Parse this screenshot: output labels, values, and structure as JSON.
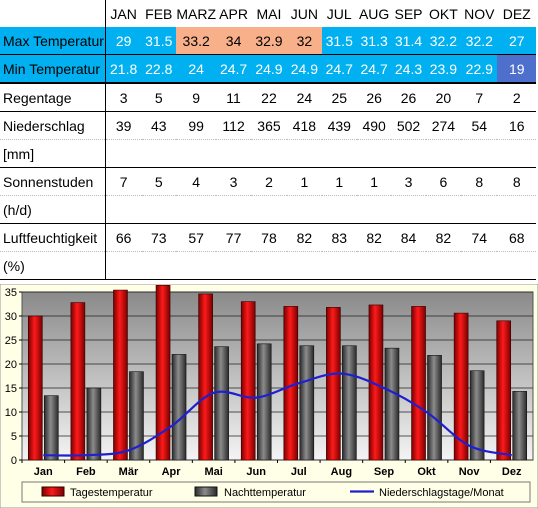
{
  "table": {
    "months": [
      "JAN",
      "FEB",
      "MARZ",
      "APR",
      "MAI",
      "JUN",
      "JUL",
      "AUG",
      "SEP",
      "OKT",
      "NOV",
      "DEZ"
    ],
    "rows": [
      {
        "key": "max",
        "label": "Max Temperatur",
        "values": [
          "29",
          "31.5",
          "33.2",
          "34",
          "32.9",
          "32",
          "31.5",
          "31.3",
          "31.4",
          "32.2",
          "32.2",
          "27"
        ]
      },
      {
        "key": "min",
        "label": "Min  Temperatur",
        "values": [
          "21.8",
          "22.8",
          "24",
          "24.7",
          "24.9",
          "24.9",
          "24.7",
          "24.7",
          "24.3",
          "23.9",
          "22.9",
          "19"
        ]
      },
      {
        "key": "rain_days",
        "label": "Regentage",
        "values": [
          "3",
          "5",
          "9",
          "11",
          "22",
          "24",
          "25",
          "26",
          "26",
          "20",
          "7",
          "2"
        ]
      },
      {
        "key": "precip",
        "label": "Niederschlag",
        "label2": "[mm]",
        "values": [
          "39",
          "43",
          "99",
          "112",
          "365",
          "418",
          "439",
          "490",
          "502",
          "274",
          "54",
          "16"
        ]
      },
      {
        "key": "sun",
        "label": "Sonnenstuden",
        "label2": "(h/d)",
        "values": [
          "7",
          "5",
          "4",
          "3",
          "2",
          "1",
          "1",
          "1",
          "3",
          "6",
          "8",
          "8"
        ]
      },
      {
        "key": "humidity",
        "label": "Luftfeuchtigkeit",
        "label2": "(%)",
        "values": [
          "66",
          "73",
          "57",
          "77",
          "78",
          "82",
          "83",
          "82",
          "84",
          "82",
          "74",
          "68"
        ]
      }
    ],
    "colors": {
      "blue": "#00b0f0",
      "warm": "#f8b08a",
      "cold": "#4f6fcc"
    }
  },
  "chart_data": {
    "type": "bar",
    "categories": [
      "Jan",
      "Feb",
      "Mär",
      "Apr",
      "Mai",
      "Jun",
      "Jul",
      "Aug",
      "Sep",
      "Okt",
      "Nov",
      "Dez"
    ],
    "ylim": [
      0,
      35
    ],
    "yticks": [
      0,
      5,
      10,
      15,
      20,
      25,
      30,
      35
    ],
    "grid": true,
    "legend_position": "bottom",
    "series": [
      {
        "name": "Tagestemperatur",
        "type": "bar",
        "color": "#e00000",
        "values": [
          30,
          32.8,
          35.4,
          36.4,
          34.6,
          33,
          32,
          31.8,
          32.3,
          32,
          30.6,
          29
        ]
      },
      {
        "name": "Nachttemperatur",
        "type": "bar",
        "color": "#555555",
        "values": [
          13.4,
          15,
          18.4,
          22,
          23.6,
          24.2,
          23.8,
          23.8,
          23.3,
          21.8,
          18.6,
          14.3
        ]
      },
      {
        "name": "Niederschlagstage/Monat",
        "type": "line",
        "color": "#1f1fd0",
        "values": [
          1,
          1,
          2,
          7,
          14,
          13,
          16,
          18,
          15,
          10,
          3,
          1
        ]
      }
    ]
  }
}
